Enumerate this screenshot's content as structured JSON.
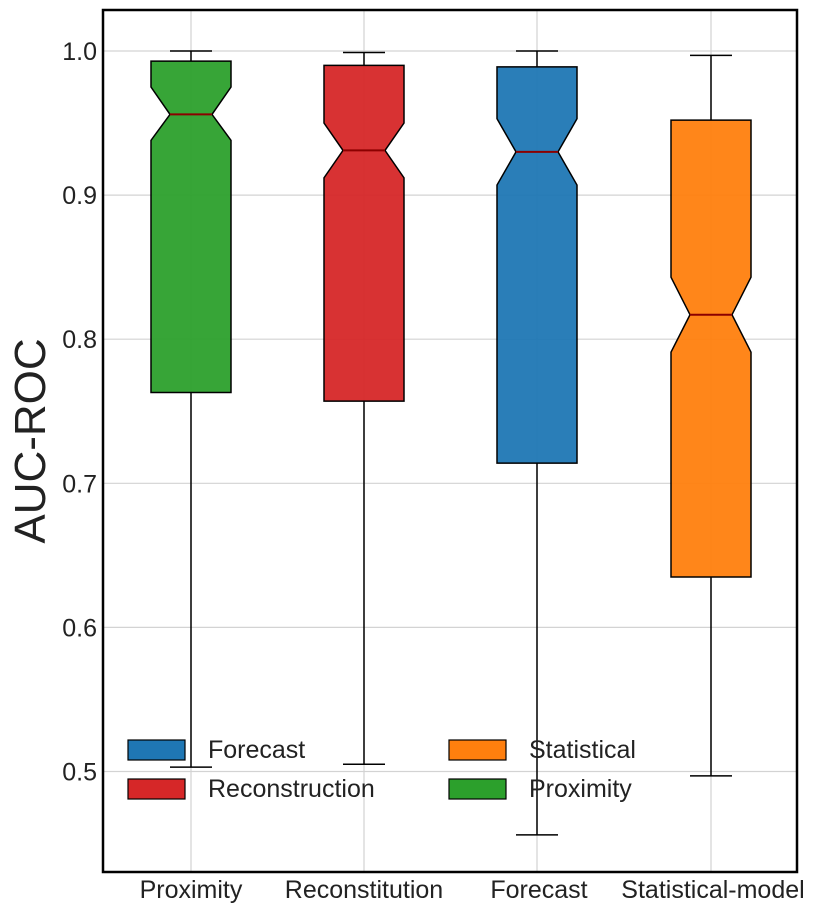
{
  "chart_data": {
    "type": "boxplot",
    "ylabel": "AUC-ROC",
    "ylim": [
      0.43,
      1.03
    ],
    "yticks": [
      0.5,
      0.6,
      0.7,
      0.8,
      0.9,
      1.0
    ],
    "ytick_labels": [
      "0.5",
      "0.6",
      "0.7",
      "0.8",
      "0.9",
      "1.0"
    ],
    "grid": true,
    "notched": true,
    "categories": [
      "Proximity",
      "Reconstitution",
      "Forecast",
      "Statistical-model"
    ],
    "boxes": [
      {
        "category": "Proximity",
        "group": "Proximity",
        "color": "#2ca02c",
        "whisker_low": 0.503,
        "q1": 0.763,
        "median": 0.956,
        "q3": 0.993,
        "whisker_high": 1.0,
        "notch_low": 0.938,
        "notch_high": 0.975
      },
      {
        "category": "Reconstitution",
        "group": "Reconstruction",
        "color": "#d62728",
        "whisker_low": 0.505,
        "q1": 0.757,
        "median": 0.931,
        "q3": 0.99,
        "whisker_high": 0.999,
        "notch_low": 0.912,
        "notch_high": 0.95
      },
      {
        "category": "Forecast",
        "group": "Forecast",
        "color": "#1f77b4",
        "whisker_low": 0.456,
        "q1": 0.714,
        "median": 0.93,
        "q3": 0.989,
        "whisker_high": 1.0,
        "notch_low": 0.907,
        "notch_high": 0.953
      },
      {
        "category": "Statistical-model",
        "group": "Statistical",
        "color": "#ff7f0e",
        "whisker_low": 0.497,
        "q1": 0.635,
        "median": 0.817,
        "q3": 0.952,
        "whisker_high": 0.997,
        "notch_low": 0.791,
        "notch_high": 0.843
      }
    ],
    "median_color": "#8b0000",
    "legend": {
      "placement": "lower-center",
      "entries": [
        {
          "label": "Forecast",
          "color": "#1f77b4"
        },
        {
          "label": "Statistical",
          "color": "#ff7f0e"
        },
        {
          "label": "Reconstruction",
          "color": "#d62728"
        },
        {
          "label": "Proximity",
          "color": "#2ca02c"
        }
      ]
    }
  }
}
